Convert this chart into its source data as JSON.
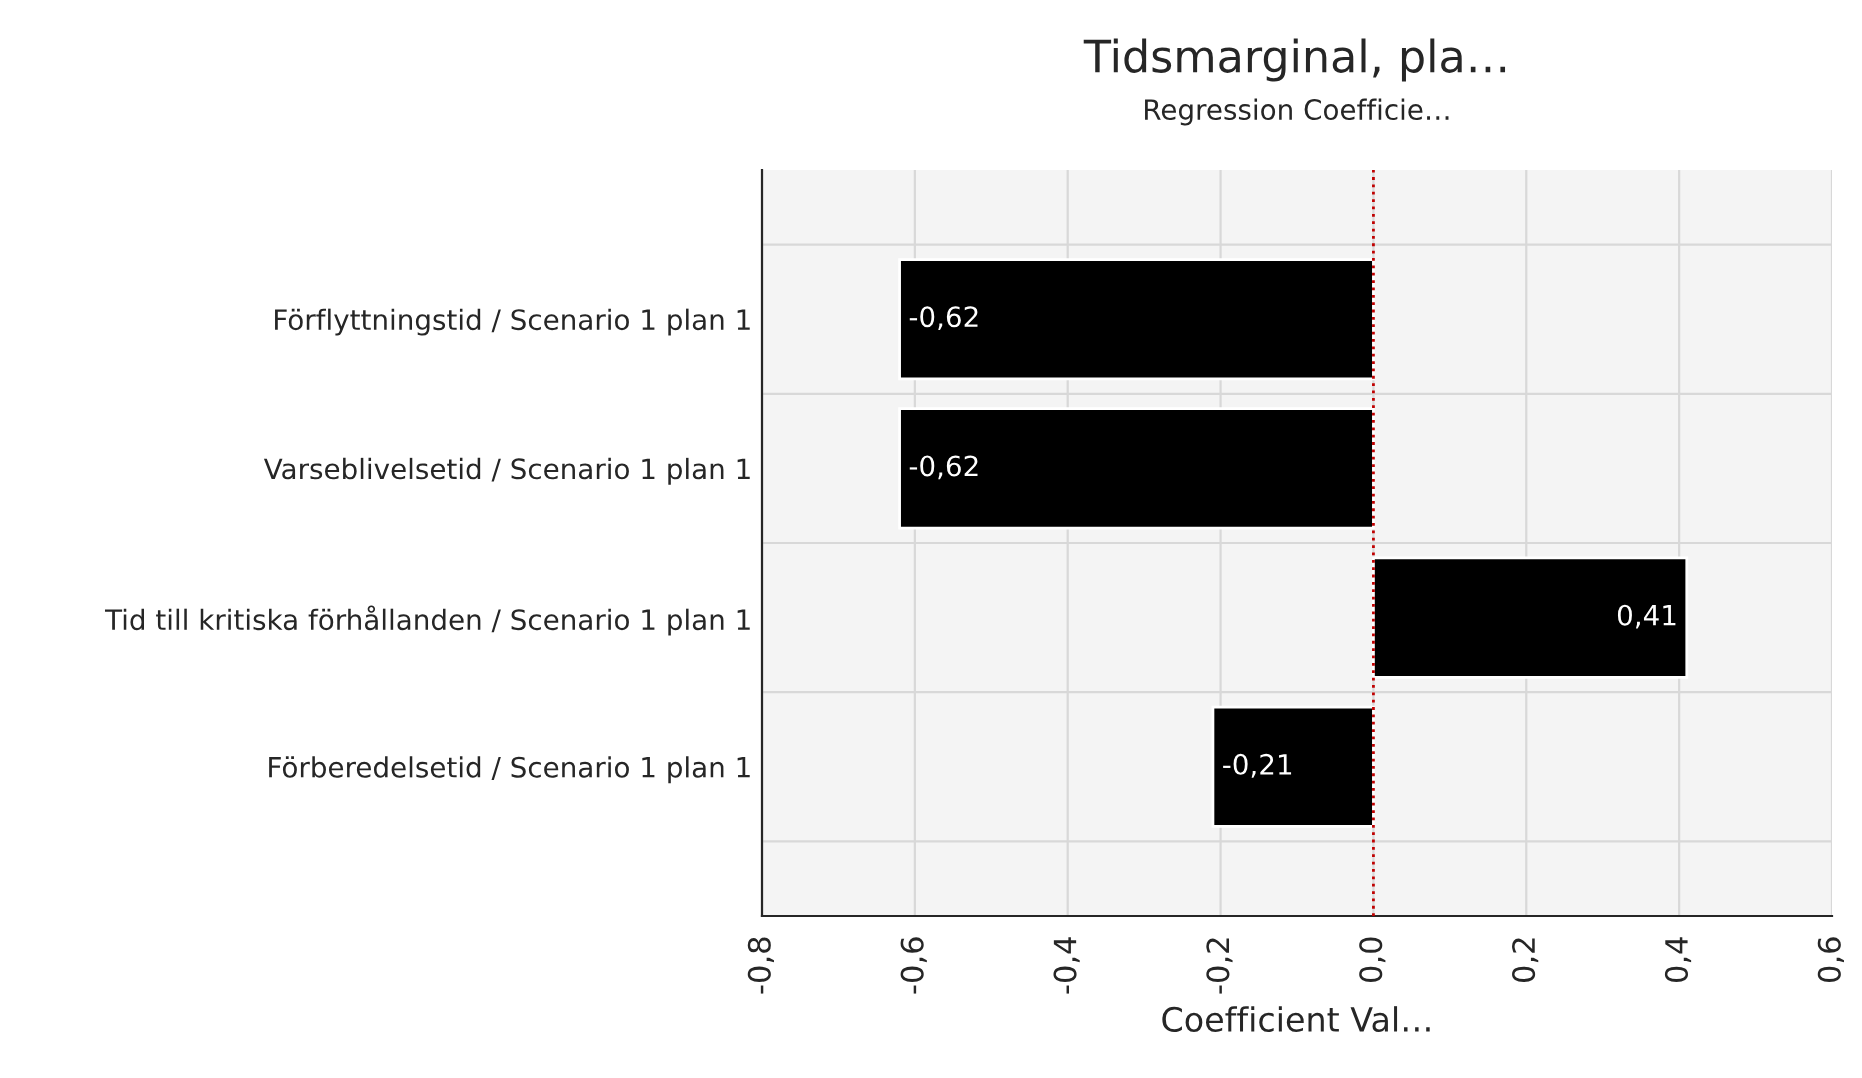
{
  "chart_data": {
    "type": "bar",
    "orientation": "horizontal",
    "title": "Tidsmarginal, pla…",
    "subtitle": "Regression Coefficie…",
    "xlabel": "Coefficient Val…",
    "categories": [
      "Förflyttningstid / Scenario 1 plan 1",
      "Varseblivelsetid / Scenario 1 plan 1",
      "Tid till kritiska förhållanden / Scenario 1 plan 1",
      "Förberedelsetid / Scenario 1 plan 1"
    ],
    "values": [
      -0.62,
      -0.62,
      0.41,
      -0.21
    ],
    "value_labels": [
      "-0,62",
      "-0,62",
      "0,41",
      "-0,21"
    ],
    "color": "#000000",
    "xlim": [
      -0.8,
      0.6
    ],
    "xticks": [
      {
        "value": -0.8,
        "label": "-0,8"
      },
      {
        "value": -0.6,
        "label": "-0,6"
      },
      {
        "value": -0.4,
        "label": "-0,4"
      },
      {
        "value": -0.2,
        "label": "-0,2"
      },
      {
        "value": 0.0,
        "label": "0,0"
      },
      {
        "value": 0.2,
        "label": "0,2"
      },
      {
        "value": 0.4,
        "label": "0,4"
      },
      {
        "value": 0.6,
        "label": "0,6"
      }
    ],
    "ref_lines": [
      {
        "axis": "x",
        "value": 0,
        "color": "#c00000",
        "line_style": "dotted"
      }
    ],
    "grid": true,
    "legend": false
  }
}
